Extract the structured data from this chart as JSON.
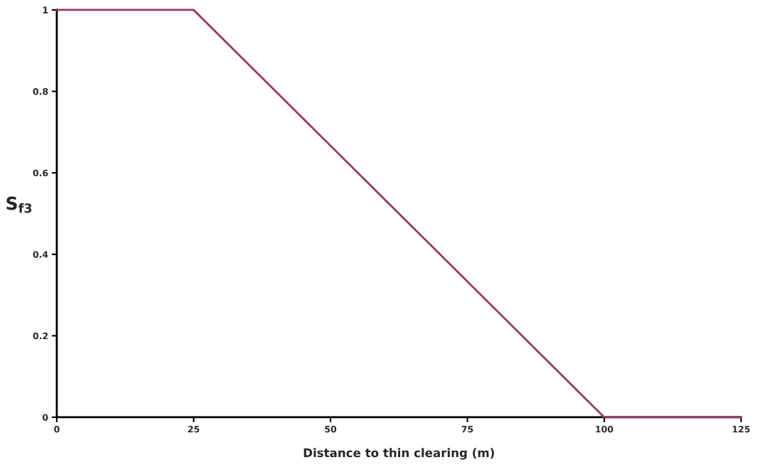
{
  "chart_data": {
    "type": "line",
    "xlabel": "Distance to thin clearing (m)",
    "ylabel": "S$_{f3}$",
    "x": [
      0,
      25,
      100,
      125
    ],
    "series": [
      {
        "color": "#993366",
        "values": [
          1,
          1,
          0,
          0
        ]
      }
    ],
    "xlim": [
      0,
      125
    ],
    "xticks": [
      0,
      25,
      50,
      75,
      100,
      125
    ],
    "ylim": [
      0,
      1
    ],
    "yticks": [
      0,
      0.2,
      0.4,
      0.6,
      0.8,
      1
    ],
    "grid": false,
    "marker": "none",
    "line_style": "solid"
  }
}
